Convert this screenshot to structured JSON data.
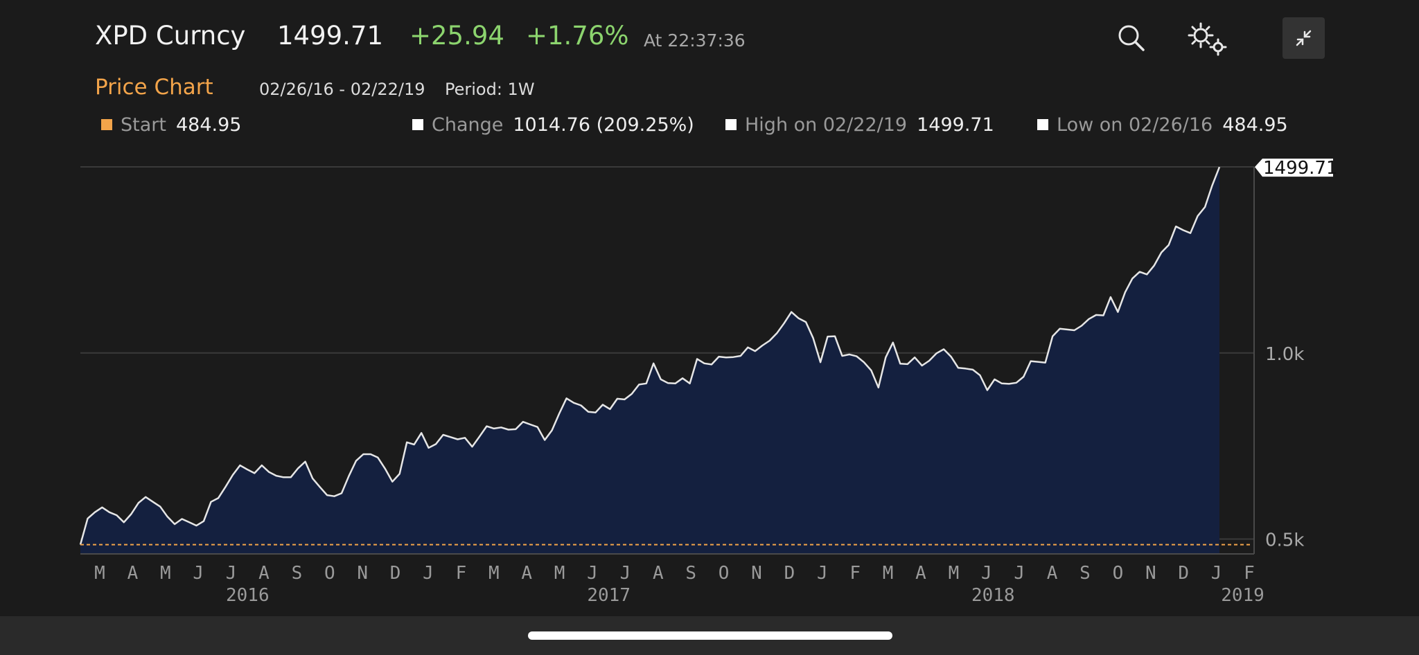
{
  "header": {
    "ticker": "XPD Curncy",
    "price": "1499.71",
    "change": "+25.94",
    "change_pct": "+1.76%",
    "time": "At 22:37:36",
    "icons": [
      "search-icon",
      "settings-gears-icon",
      "minimize-icon"
    ]
  },
  "subheader": {
    "title": "Price Chart",
    "range": "02/26/16 - 02/22/19",
    "period": "Period: 1W"
  },
  "stats": {
    "start": {
      "label": "Start",
      "value": "484.95",
      "color": "#f3a44a"
    },
    "change": {
      "label": "Change",
      "value": "1014.76 (209.25%)",
      "color": "#ffffff"
    },
    "high": {
      "label": "High on 02/22/19",
      "value": "1499.71",
      "color": "#ffffff"
    },
    "low": {
      "label": "Low on 02/26/16",
      "value": "484.95",
      "color": "#ffffff"
    }
  },
  "colors": {
    "accent": "#f3a44a",
    "positive": "#8cd46e",
    "area_fill": "#14203f",
    "line": "#e6e6e6"
  },
  "chart_data": {
    "type": "area",
    "x_start": "2016-02-26",
    "x_end": "2019-02-22",
    "ylim": [
      460,
      1500
    ],
    "y_ticks": [
      {
        "value": 500,
        "label": "0.5k"
      },
      {
        "value": 1000,
        "label": "1.0k"
      }
    ],
    "last_value_label": "1499.71",
    "start_reference_line": 484.95,
    "month_labels": [
      "M",
      "A",
      "M",
      "J",
      "J",
      "A",
      "S",
      "O",
      "N",
      "D",
      "J",
      "F",
      "M",
      "A",
      "M",
      "J",
      "J",
      "A",
      "S",
      "O",
      "N",
      "D",
      "J",
      "F",
      "M",
      "A",
      "M",
      "J",
      "J",
      "A",
      "S",
      "O",
      "N",
      "D",
      "J",
      "F"
    ],
    "year_labels": [
      {
        "label": "2016",
        "month_index": 4.5
      },
      {
        "label": "2017",
        "month_index": 15.5
      },
      {
        "label": "2018",
        "month_index": 27.2
      },
      {
        "label": "2019",
        "month_index": 34.8
      }
    ],
    "series": [
      {
        "values": [
          484.95,
          555,
          572,
          585,
          572,
          564,
          545,
          567,
          597,
          613,
          600,
          587,
          560,
          540,
          554,
          545,
          536,
          548,
          600,
          610,
          640,
          672,
          698,
          687,
          677,
          698,
          680,
          670,
          666,
          666,
          690,
          708,
          663,
          640,
          618,
          615,
          623,
          669,
          710,
          728,
          728,
          719,
          689,
          654,
          675,
          760,
          754,
          785,
          745,
          755,
          780,
          774,
          768,
          772,
          748,
          775,
          803,
          797,
          800,
          794,
          795,
          815,
          808,
          801,
          766,
          792,
          837,
          878,
          866,
          859,
          842,
          840,
          861,
          849,
          877,
          875,
          890,
          915,
          918,
          972,
          929,
          919,
          918,
          932,
          918,
          984,
          972,
          969,
          990,
          988,
          989,
          992,
          1015,
          1005,
          1020,
          1033,
          1053,
          1080,
          1110,
          1093,
          1083,
          1040,
          975,
          1044,
          1045,
          992,
          996,
          991,
          975,
          953,
          907,
          988,
          1028,
          971,
          970,
          988,
          966,
          979,
          999,
          1010,
          990,
          960,
          958,
          955,
          940,
          900,
          929,
          918,
          917,
          920,
          936,
          978,
          976,
          974,
          1045,
          1065,
          1063,
          1061,
          1073,
          1091,
          1102,
          1101,
          1150,
          1110,
          1163,
          1200,
          1218,
          1211,
          1235,
          1270,
          1290,
          1340,
          1330,
          1322,
          1368,
          1392,
          1450,
          1499.71
        ]
      }
    ]
  }
}
